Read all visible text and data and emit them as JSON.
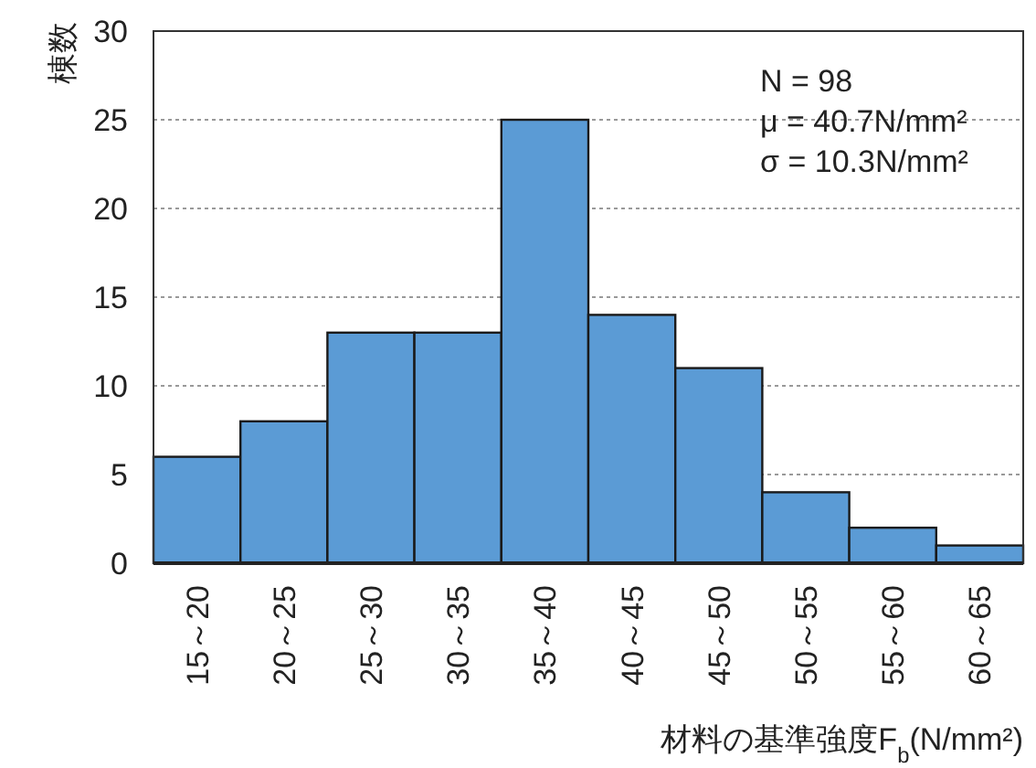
{
  "chart_data": {
    "type": "bar",
    "ylabel": "棟数",
    "xlabel": "材料の基準強度F$_{b}$(N/mm²)",
    "categories": [
      "15～20",
      "20～25",
      "25～30",
      "30～35",
      "35～40",
      "40～45",
      "45～50",
      "50～55",
      "55～60",
      "60～65"
    ],
    "values": [
      6,
      8,
      13,
      13,
      25,
      14,
      11,
      4,
      2,
      1
    ],
    "color": "#5b9bd5",
    "ylim": [
      0,
      30
    ],
    "yticks": [
      0,
      5,
      10,
      15,
      20,
      25,
      30
    ],
    "grid": "y",
    "annotations": [
      "N = 98",
      "μ = 40.7N/mm²",
      "σ = 10.3N/mm²"
    ]
  }
}
